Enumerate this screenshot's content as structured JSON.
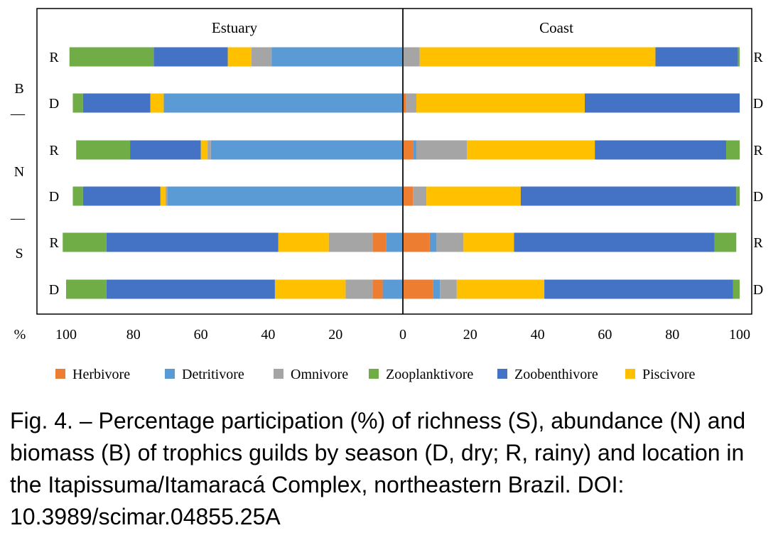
{
  "chart_data": {
    "type": "bar",
    "orientation": "horizontal",
    "stacked": true,
    "layout": "mirrored back-to-back panels",
    "panels": [
      {
        "title": "Estuary",
        "direction": "right-to-left"
      },
      {
        "title": "Coast",
        "direction": "left-to-right"
      }
    ],
    "xlabel": "%",
    "xlim": [
      0,
      100
    ],
    "x_ticks_left": [
      100,
      80,
      60,
      40,
      20,
      0
    ],
    "x_ticks_right": [
      20,
      40,
      60,
      80,
      100
    ],
    "groups": [
      "B",
      "N",
      "S"
    ],
    "group_separator": "—",
    "series": [
      {
        "name": "Herbivore",
        "color": "#ED7D31"
      },
      {
        "name": "Detritivore",
        "color": "#5B9BD5"
      },
      {
        "name": "Omnivore",
        "color": "#A5A5A5"
      },
      {
        "name": "Zooplanktivore",
        "color": "#70AD47"
      },
      {
        "name": "Zoobenthivore",
        "color": "#4472C4"
      },
      {
        "name": "Piscivore",
        "color": "#FFC000"
      }
    ],
    "legend_labels": [
      "Herbivore",
      "Detritivore",
      "Omnivore",
      "Zooplanktivore",
      "Zoobenthivore",
      "Piscivore"
    ],
    "legend_position": "bottom",
    "rows": [
      {
        "group": "B",
        "season": "R",
        "season_right": "R",
        "estuary": {
          "Herbivore": 0,
          "Detritivore": 39,
          "Omnivore": 6,
          "Zooplanktivore": 25,
          "Zoobenthivore": 22,
          "Piscivore": 7
        },
        "coast": {
          "Herbivore": 0,
          "Detritivore": 0,
          "Omnivore": 5,
          "Zooplanktivore": 0.5,
          "Zoobenthivore": 24.5,
          "Piscivore": 70
        }
      },
      {
        "group": "B",
        "season": "D",
        "season_right": "D",
        "estuary": {
          "Herbivore": 0,
          "Detritivore": 71,
          "Omnivore": 0,
          "Zooplanktivore": 3,
          "Zoobenthivore": 20,
          "Piscivore": 4
        },
        "coast": {
          "Herbivore": 1,
          "Detritivore": 0,
          "Omnivore": 3,
          "Zooplanktivore": 0,
          "Zoobenthivore": 46,
          "Piscivore": 50
        }
      },
      {
        "group": "N",
        "season": "R",
        "season_right": "R",
        "estuary": {
          "Herbivore": 0,
          "Detritivore": 57,
          "Omnivore": 1,
          "Zooplanktivore": 16,
          "Zoobenthivore": 21,
          "Piscivore": 2
        },
        "coast": {
          "Herbivore": 3,
          "Detritivore": 1,
          "Omnivore": 15,
          "Zooplanktivore": 4,
          "Zoobenthivore": 39,
          "Piscivore": 38
        }
      },
      {
        "group": "N",
        "season": "D",
        "season_right": "D",
        "estuary": {
          "Herbivore": 0,
          "Detritivore": 70,
          "Omnivore": 0.5,
          "Zooplanktivore": 3,
          "Zoobenthivore": 23,
          "Piscivore": 1.5
        },
        "coast": {
          "Herbivore": 3,
          "Detritivore": 0,
          "Omnivore": 4,
          "Zooplanktivore": 1,
          "Zoobenthivore": 64,
          "Piscivore": 28
        }
      },
      {
        "group": "S",
        "season": "R",
        "season_right": "R",
        "estuary": {
          "Herbivore": 4,
          "Detritivore": 5,
          "Omnivore": 13,
          "Zooplanktivore": 13,
          "Zoobenthivore": 51,
          "Piscivore": 15
        },
        "coast": {
          "Herbivore": 8,
          "Detritivore": 2,
          "Omnivore": 8,
          "Zooplanktivore": 6.5,
          "Zoobenthivore": 59.5,
          "Piscivore": 15
        }
      },
      {
        "group": "S",
        "season": "D",
        "season_right": "D",
        "estuary": {
          "Herbivore": 3,
          "Detritivore": 6,
          "Omnivore": 8,
          "Zooplanktivore": 12,
          "Zoobenthivore": 50,
          "Piscivore": 21
        },
        "coast": {
          "Herbivore": 9,
          "Detritivore": 2,
          "Omnivore": 5,
          "Zooplanktivore": 2,
          "Zoobenthivore": 56,
          "Piscivore": 26
        }
      }
    ]
  },
  "caption": "Fig. 4. – Percentage participation (%) of richness (S), abundance (N) and biomass (B) of trophics guilds by season (D, dry; R, rainy) and location in the Itapissuma/Itamaracá Complex, northeastern Brazil. DOI: 10.3989/scimar.04855.25A"
}
